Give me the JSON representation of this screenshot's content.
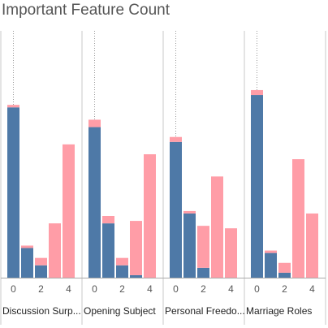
{
  "title": "Important Feature Count",
  "colors": {
    "blue": "#4e79a7",
    "pink": "#ff9da7",
    "divider": "#c8c8c8",
    "baseline": "#aaaaaa",
    "refline": "#9a9a9a"
  },
  "chart_data": {
    "type": "bar",
    "title": "Important Feature Count",
    "xlabel": "",
    "ylabel": "",
    "ylim": [
      0,
      100
    ],
    "x": [
      0,
      1,
      2,
      3,
      4
    ],
    "x_ticks": [
      "0",
      "2",
      "4"
    ],
    "grid": false,
    "legend": "none",
    "stacked": true,
    "facets": [
      {
        "label": "Discussion Surp...",
        "series": [
          {
            "color": "blue",
            "values": [
              69,
              12,
              5,
              0,
              0
            ]
          },
          {
            "color": "pink",
            "values": [
              1,
              1,
              3,
              22,
              54
            ]
          }
        ]
      },
      {
        "label": "Opening Subject",
        "series": [
          {
            "color": "blue",
            "values": [
              61,
              22,
              5,
              1,
              0
            ]
          },
          {
            "color": "pink",
            "values": [
              3,
              3,
              3,
              22,
              50
            ]
          }
        ]
      },
      {
        "label": "Personal Freedo...",
        "series": [
          {
            "color": "blue",
            "values": [
              55,
              26,
              4,
              0,
              0
            ]
          },
          {
            "color": "pink",
            "values": [
              2,
              1,
              17,
              41,
              20
            ]
          }
        ]
      },
      {
        "label": "Marriage Roles",
        "series": [
          {
            "color": "blue",
            "values": [
              74,
              10,
              2,
              0,
              0
            ]
          },
          {
            "color": "pink",
            "values": [
              2,
              1,
              4,
              48,
              26
            ]
          }
        ]
      }
    ]
  }
}
